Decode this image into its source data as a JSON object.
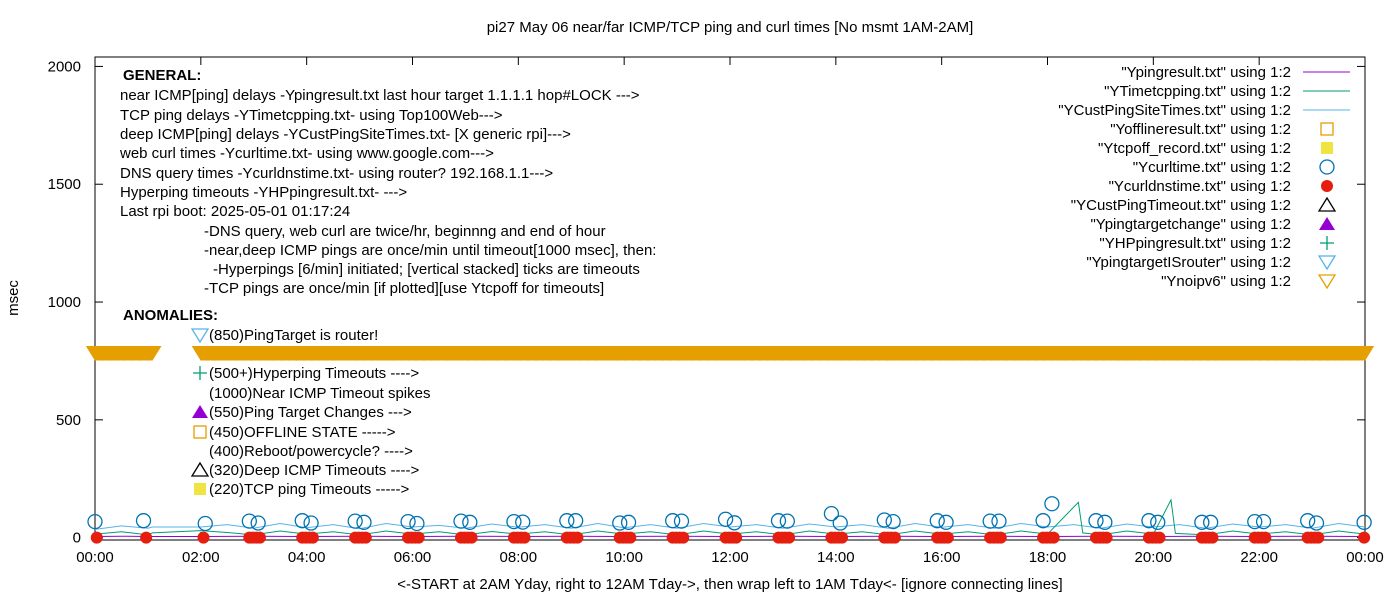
{
  "chart_data": {
    "type": "line",
    "title": "pi27 May 06  near/far ICMP/TCP ping and curl times [No msmt 1AM-2AM]",
    "xlabel": "<-START at 2AM Yday, right to 12AM Tday->, then wrap left to 1AM Tday<- [ignore connecting lines]",
    "ylabel": "msec",
    "xlim": [
      "00:00",
      "24:00"
    ],
    "ylim": [
      -10,
      2040
    ],
    "x_ticks": [
      "00:00",
      "02:00",
      "04:00",
      "06:00",
      "08:00",
      "10:00",
      "12:00",
      "14:00",
      "16:00",
      "18:00",
      "20:00",
      "22:00",
      "00:00"
    ],
    "y_ticks": [
      0,
      500,
      1000,
      1500,
      2000
    ],
    "grid": false,
    "legend_position": "top-right",
    "colors": {
      "ping": "#9400d3",
      "tcp": "#009e73",
      "cust": "#56b4e9",
      "offline": "#e69f00",
      "tcpoff": "#f0e442",
      "curl": "#0072b2",
      "dns": "#e51e10",
      "custTimeout": "#000000",
      "targetchange": "#9400d3",
      "hp": "#009e73",
      "isrouter": "#56b4e9",
      "noipv6": "#e69f00"
    },
    "legend": [
      {
        "label": "\"Ypingresult.txt\" using 1:2",
        "mark": "line",
        "color": "#9400d3"
      },
      {
        "label": "\"YTimetcpping.txt\" using 1:2",
        "mark": "line",
        "color": "#009e73"
      },
      {
        "label": "\"YCustPingSiteTimes.txt\" using 1:2",
        "mark": "line",
        "color": "#56b4e9"
      },
      {
        "label": "\"Yofflineresult.txt\" using 1:2",
        "mark": "open-square",
        "color": "#e69f00"
      },
      {
        "label": "\"Ytcpoff_record.txt\" using 1:2",
        "mark": "filled-square",
        "color": "#f0e442"
      },
      {
        "label": "\"Ycurltime.txt\" using 1:2",
        "mark": "open-circle",
        "color": "#0072b2"
      },
      {
        "label": "\"Ycurldnstime.txt\" using 1:2",
        "mark": "filled-circle",
        "color": "#e51e10"
      },
      {
        "label": "\"YCustPingTimeout.txt\" using 1:2",
        "mark": "open-triangle",
        "color": "#000000"
      },
      {
        "label": "\"Ypingtargetchange\" using 1:2",
        "mark": "filled-triangle",
        "color": "#9400d3"
      },
      {
        "label": "\"YHPpingresult.txt\" using 1:2",
        "mark": "plus",
        "color": "#009e73"
      },
      {
        "label": "\"YpingtargetISrouter\" using 1:2",
        "mark": "open-inv-triangle",
        "color": "#56b4e9"
      },
      {
        "label": "\"Ynoipv6\" using 1:2",
        "mark": "open-inv-triangle",
        "color": "#e69f00"
      }
    ],
    "series": {
      "cust": [
        [
          "00:00",
          35
        ],
        [
          "00:30",
          50
        ],
        [
          "01:00",
          40
        ],
        [
          "01:05",
          45
        ],
        [
          "02:00",
          45
        ],
        [
          "02:30",
          55
        ],
        [
          "03:00",
          40
        ],
        [
          "03:30",
          60
        ],
        [
          "04:00",
          42
        ],
        [
          "04:30",
          55
        ],
        [
          "05:00",
          38
        ],
        [
          "05:30",
          60
        ],
        [
          "06:00",
          45
        ],
        [
          "06:30",
          52
        ],
        [
          "07:00",
          40
        ],
        [
          "07:30",
          58
        ],
        [
          "08:00",
          44
        ],
        [
          "08:30",
          55
        ],
        [
          "09:00",
          40
        ],
        [
          "09:30",
          60
        ],
        [
          "10:00",
          42
        ],
        [
          "10:30",
          55
        ],
        [
          "11:00",
          40
        ],
        [
          "11:30",
          60
        ],
        [
          "12:00",
          45
        ],
        [
          "12:30",
          55
        ],
        [
          "13:00",
          40
        ],
        [
          "13:30",
          58
        ],
        [
          "14:00",
          45
        ],
        [
          "14:30",
          55
        ],
        [
          "15:00",
          40
        ],
        [
          "15:30",
          60
        ],
        [
          "16:00",
          44
        ],
        [
          "16:30",
          55
        ],
        [
          "17:00",
          40
        ],
        [
          "17:30",
          60
        ],
        [
          "18:00",
          45
        ],
        [
          "18:30",
          55
        ],
        [
          "19:00",
          40
        ],
        [
          "19:30",
          58
        ],
        [
          "20:00",
          45
        ],
        [
          "20:30",
          55
        ],
        [
          "21:00",
          40
        ],
        [
          "21:30",
          58
        ],
        [
          "22:00",
          45
        ],
        [
          "22:30",
          55
        ],
        [
          "23:00",
          40
        ],
        [
          "23:30",
          60
        ],
        [
          "24:00",
          45
        ]
      ],
      "tcp": [
        [
          "00:00",
          15
        ],
        [
          "00:30",
          25
        ],
        [
          "01:00",
          12
        ],
        [
          "01:05",
          20
        ],
        [
          "02:00",
          30
        ],
        [
          "02:30",
          22
        ],
        [
          "03:00",
          12
        ],
        [
          "03:30",
          28
        ],
        [
          "04:00",
          15
        ],
        [
          "04:30",
          25
        ],
        [
          "05:00",
          12
        ],
        [
          "05:30",
          28
        ],
        [
          "06:00",
          15
        ],
        [
          "06:30",
          25
        ],
        [
          "07:00",
          12
        ],
        [
          "07:30",
          26
        ],
        [
          "08:00",
          15
        ],
        [
          "08:30",
          25
        ],
        [
          "09:00",
          12
        ],
        [
          "09:30",
          28
        ],
        [
          "10:00",
          15
        ],
        [
          "10:30",
          25
        ],
        [
          "11:00",
          12
        ],
        [
          "11:30",
          28
        ],
        [
          "12:00",
          15
        ],
        [
          "12:30",
          25
        ],
        [
          "13:00",
          12
        ],
        [
          "13:30",
          28
        ],
        [
          "14:00",
          15
        ],
        [
          "14:30",
          25
        ],
        [
          "15:00",
          12
        ],
        [
          "15:30",
          28
        ],
        [
          "16:00",
          15
        ],
        [
          "16:30",
          25
        ],
        [
          "17:00",
          12
        ],
        [
          "17:30",
          28
        ],
        [
          "18:00",
          15
        ],
        [
          "18:35",
          150
        ],
        [
          "18:40",
          20
        ],
        [
          "19:00",
          12
        ],
        [
          "19:30",
          28
        ],
        [
          "20:00",
          15
        ],
        [
          "20:20",
          160
        ],
        [
          "20:25",
          18
        ],
        [
          "21:00",
          12
        ],
        [
          "21:30",
          28
        ],
        [
          "22:00",
          15
        ],
        [
          "22:30",
          25
        ],
        [
          "23:00",
          12
        ],
        [
          "23:30",
          28
        ],
        [
          "24:00",
          15
        ]
      ],
      "ping": [
        [
          "00:00",
          5
        ],
        [
          "00:30",
          6
        ],
        [
          "01:00",
          5
        ],
        [
          "01:05",
          5
        ],
        [
          "02:00",
          5
        ],
        [
          "03:00",
          6
        ],
        [
          "04:00",
          5
        ],
        [
          "05:00",
          6
        ],
        [
          "06:00",
          5
        ],
        [
          "07:00",
          6
        ],
        [
          "08:00",
          5
        ],
        [
          "09:00",
          6
        ],
        [
          "10:00",
          5
        ],
        [
          "11:00",
          6
        ],
        [
          "12:00",
          5
        ],
        [
          "13:00",
          6
        ],
        [
          "14:00",
          5
        ],
        [
          "15:00",
          6
        ],
        [
          "16:00",
          5
        ],
        [
          "17:00",
          6
        ],
        [
          "18:00",
          5
        ],
        [
          "19:00",
          6
        ],
        [
          "20:00",
          5
        ],
        [
          "21:00",
          6
        ],
        [
          "22:00",
          5
        ],
        [
          "23:00",
          6
        ],
        [
          "24:00",
          5
        ]
      ]
    },
    "curl": [
      [
        "00:00",
        68
      ],
      [
        "00:55",
        72
      ],
      [
        "02:05",
        60
      ],
      [
        "02:55",
        70
      ],
      [
        "03:05",
        62
      ],
      [
        "03:55",
        72
      ],
      [
        "04:05",
        62
      ],
      [
        "04:55",
        70
      ],
      [
        "05:05",
        65
      ],
      [
        "05:55",
        68
      ],
      [
        "06:05",
        60
      ],
      [
        "06:55",
        70
      ],
      [
        "07:05",
        65
      ],
      [
        "07:55",
        68
      ],
      [
        "08:05",
        66
      ],
      [
        "08:55",
        72
      ],
      [
        "09:05",
        72
      ],
      [
        "09:55",
        62
      ],
      [
        "10:05",
        65
      ],
      [
        "10:55",
        72
      ],
      [
        "11:05",
        70
      ],
      [
        "11:55",
        78
      ],
      [
        "12:05",
        63
      ],
      [
        "12:55",
        72
      ],
      [
        "13:05",
        70
      ],
      [
        "13:55",
        102
      ],
      [
        "14:05",
        62
      ],
      [
        "14:55",
        75
      ],
      [
        "15:05",
        68
      ],
      [
        "15:55",
        72
      ],
      [
        "16:05",
        65
      ],
      [
        "16:55",
        70
      ],
      [
        "17:05",
        70
      ],
      [
        "17:55",
        72
      ],
      [
        "18:05",
        144
      ],
      [
        "18:55",
        72
      ],
      [
        "19:05",
        65
      ],
      [
        "19:55",
        72
      ],
      [
        "20:05",
        65
      ],
      [
        "20:55",
        65
      ],
      [
        "21:05",
        65
      ],
      [
        "21:55",
        68
      ],
      [
        "22:05",
        68
      ],
      [
        "22:55",
        72
      ],
      [
        "23:05",
        62
      ],
      [
        "23:59",
        65
      ]
    ],
    "dns": {
      "value": 0,
      "times": [
        "00:02",
        "00:58",
        "02:03",
        "02:55",
        "02:59",
        "03:03",
        "03:07",
        "03:55",
        "03:59",
        "04:03",
        "04:07",
        "04:55",
        "04:59",
        "05:03",
        "05:07",
        "05:55",
        "05:59",
        "06:03",
        "06:07",
        "06:55",
        "06:59",
        "07:03",
        "07:07",
        "07:55",
        "07:59",
        "08:03",
        "08:07",
        "08:55",
        "08:59",
        "09:03",
        "09:07",
        "09:55",
        "09:59",
        "10:03",
        "10:07",
        "10:55",
        "10:59",
        "11:03",
        "11:07",
        "11:55",
        "11:59",
        "12:03",
        "12:07",
        "12:55",
        "12:59",
        "13:03",
        "13:07",
        "13:55",
        "13:59",
        "14:03",
        "14:07",
        "14:55",
        "14:59",
        "15:03",
        "15:07",
        "15:55",
        "15:59",
        "16:03",
        "16:07",
        "16:55",
        "16:59",
        "17:03",
        "17:07",
        "17:55",
        "17:59",
        "18:03",
        "18:07",
        "18:55",
        "18:59",
        "19:03",
        "19:07",
        "19:55",
        "19:59",
        "20:03",
        "20:07",
        "20:55",
        "20:59",
        "21:03",
        "21:07",
        "21:55",
        "21:59",
        "22:03",
        "22:07",
        "22:55",
        "22:59",
        "23:03",
        "23:07",
        "23:59"
      ]
    },
    "noipv6": {
      "value": 785,
      "ranges": [
        [
          "00:00",
          "01:05"
        ],
        [
          "02:00",
          "24:00"
        ]
      ]
    }
  },
  "annotations": {
    "general_heading": "GENERAL:",
    "general_lines": [
      "near ICMP[ping] delays -Ypingresult.txt last hour target 1.1.1.1 hop#LOCK --->",
      "TCP ping delays -YTimetcpping.txt- using Top100Web--->",
      "deep ICMP[ping] delays -YCustPingSiteTimes.txt- [X generic rpi]--->",
      "web curl times -Ycurltime.txt- using www.google.com--->",
      "DNS query times -Ycurldnstime.txt- using router? 192.168.1.1--->",
      "Hyperping timeouts -YHPpingresult.txt- --->",
      "Last rpi boot: 2025-05-01 01:17:24"
    ],
    "notes": [
      "-DNS query, web curl are twice/hr, beginnng and end of hour",
      "-near,deep ICMP pings are once/min until timeout[1000 msec], then:",
      "-Hyperpings [6/min] initiated; [vertical stacked] ticks are timeouts",
      "-TCP pings are once/min [if plotted][use Ytcpoff for timeouts]"
    ],
    "anomalies_heading": "ANOMALIES:",
    "anomalies": [
      {
        "label": "(850)PingTarget is router!",
        "mark": "open-inv-triangle",
        "color": "#56b4e9"
      },
      {
        "label": "(500+)Hyperping Timeouts ---->",
        "mark": "plus",
        "color": "#009e73"
      },
      {
        "label": "(1000)Near ICMP Timeout spikes",
        "mark": "none",
        "color": ""
      },
      {
        "label": "(550)Ping Target Changes --->",
        "mark": "filled-triangle",
        "color": "#9400d3"
      },
      {
        "label": "(450)OFFLINE STATE ----->",
        "mark": "open-square",
        "color": "#e69f00"
      },
      {
        "label": "(400)Reboot/powercycle? ---->",
        "mark": "none",
        "color": ""
      },
      {
        "label": "(320)Deep ICMP Timeouts ---->",
        "mark": "open-triangle",
        "color": "#000000"
      },
      {
        "label": "(220)TCP ping Timeouts ----->",
        "mark": "filled-square",
        "color": "#f0e442"
      }
    ]
  }
}
